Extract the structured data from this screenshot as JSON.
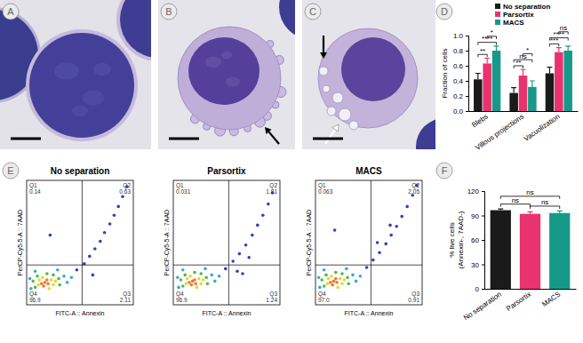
{
  "panel_labels": [
    "A",
    "B",
    "C",
    "D",
    "E",
    "F"
  ],
  "chart_data": [
    {
      "type": "bar",
      "y_label": "Fraction of cells",
      "categories": [
        "Blebs",
        "Villous projections",
        "Vacuolization"
      ],
      "ylim": [
        0,
        1
      ],
      "yticks": [
        {
          "value": 0,
          "label": "0.0"
        },
        {
          "value": 0.2,
          "label": "0.2"
        },
        {
          "value": 0.4,
          "label": "0.4"
        },
        {
          "value": 0.6,
          "label": "0.6"
        },
        {
          "value": 0.8,
          "label": "0.8"
        },
        {
          "value": 1,
          "label": "1.0"
        }
      ],
      "legend": "upper left",
      "series": [
        {
          "name": "No separation",
          "color": "#1a1a1a",
          "values": [
            0.42,
            0.24,
            0.5
          ],
          "errors": [
            0.08,
            0.07,
            0.08
          ]
        },
        {
          "name": "Parsortix",
          "color": "#e8336e",
          "values": [
            0.63,
            0.47,
            0.78
          ],
          "errors": [
            0.07,
            0.08,
            0.06
          ]
        },
        {
          "name": "MACS",
          "color": "#17998a",
          "values": [
            0.8,
            0.32,
            0.8
          ],
          "errors": [
            0.06,
            0.08,
            0.06
          ]
        }
      ],
      "annotations": [
        {
          "text": "**",
          "category": 0,
          "between": [
            0,
            1
          ]
        },
        {
          "text": "****",
          "category": 0,
          "between": [
            0,
            2
          ]
        },
        {
          "text": "*",
          "category": 0,
          "between": [
            1,
            2
          ]
        },
        {
          "text": "**",
          "category": 1,
          "between": [
            0,
            1
          ]
        },
        {
          "text": "ns",
          "category": 1,
          "between": [
            0,
            2
          ]
        },
        {
          "text": "*",
          "category": 1,
          "between": [
            1,
            2
          ]
        },
        {
          "text": "***",
          "category": 2,
          "between": [
            0,
            1
          ]
        },
        {
          "text": "****",
          "category": 2,
          "between": [
            0,
            2
          ]
        },
        {
          "text": "ns",
          "category": 2,
          "between": [
            1,
            2
          ]
        }
      ]
    },
    {
      "type": "scatter",
      "title": "No separation",
      "x_label": "FITC-A :: Annexin",
      "y_label": "PerCP-Cy5-5-A :: 7AAD",
      "xlim": [
        0,
        100
      ],
      "ylim": [
        0,
        100
      ],
      "tick_labels": false,
      "x": [
        14,
        17,
        20,
        16,
        19,
        11,
        12,
        23,
        25,
        15,
        21,
        27,
        8,
        30,
        10,
        25,
        31,
        6,
        19,
        4,
        35,
        38,
        8,
        29,
        42,
        3,
        47,
        54,
        59,
        64,
        69,
        73,
        78,
        82,
        86,
        90,
        94,
        62,
        22
      ],
      "y": [
        17,
        18,
        17,
        15,
        20,
        16,
        20,
        20,
        16,
        22,
        13,
        19,
        14,
        21,
        23,
        24,
        16,
        19,
        25,
        13,
        23,
        18,
        27,
        28,
        22,
        21,
        28,
        33,
        39,
        45,
        51,
        58,
        65,
        72,
        79,
        87,
        95,
        24,
        56
      ],
      "colors": [
        "#f4762a",
        "#f4762a",
        "#f4762a",
        "#f4762a",
        "#f4762a",
        "#e6d72a",
        "#e6d72a",
        "#e6d72a",
        "#e6d72a",
        "#e6d72a",
        "#e6d72a",
        "#e6d72a",
        "#52b848",
        "#52b848",
        "#52b848",
        "#52b848",
        "#52b848",
        "#52b848",
        "#52b848",
        "#35a7d9",
        "#35a7d9",
        "#35a7d9",
        "#35a7d9",
        "#35a7d9",
        "#35a7d9",
        "#35a7d9",
        "#2c43b8",
        "#2c43b8",
        "#2c43b8",
        "#2c43b8",
        "#2c43b8",
        "#2c43b8",
        "#2c43b8",
        "#2c43b8",
        "#2c43b8",
        "#2c43b8",
        "#2c43b8",
        "#2c43b8",
        "#2c43b8"
      ],
      "gates": {
        "x": 52,
        "y": 32
      },
      "quadrants": [
        {
          "name": "Q1",
          "value": 0.14
        },
        {
          "name": "Q2",
          "value": 0.63
        },
        {
          "name": "Q3",
          "value": 2.11
        },
        {
          "name": "Q4",
          "value": 96.9
        }
      ]
    },
    {
      "type": "scatter",
      "title": "Parsortix",
      "x_label": "FITC-A :: Annexin",
      "y_label": "PerCP-Cy5-5-A :: 7AAD",
      "xlim": [
        0,
        100
      ],
      "ylim": [
        0,
        100
      ],
      "tick_labels": false,
      "x": [
        15,
        18,
        21,
        17,
        20,
        12,
        13,
        24,
        26,
        16,
        22,
        28,
        9,
        31,
        11,
        26,
        32,
        7,
        20,
        5,
        36,
        39,
        9,
        30,
        43,
        4,
        49,
        56,
        62,
        68,
        74,
        79,
        84,
        89,
        93,
        65,
        60,
        71
      ],
      "y": [
        18,
        19,
        17,
        16,
        20,
        17,
        21,
        21,
        17,
        23,
        14,
        20,
        15,
        22,
        24,
        25,
        17,
        20,
        26,
        14,
        24,
        19,
        28,
        29,
        23,
        22,
        29,
        35,
        41,
        48,
        56,
        64,
        72,
        81,
        90,
        25,
        27,
        38
      ],
      "colors": [
        "#f4762a",
        "#f4762a",
        "#f4762a",
        "#f4762a",
        "#f4762a",
        "#e6d72a",
        "#e6d72a",
        "#e6d72a",
        "#e6d72a",
        "#e6d72a",
        "#e6d72a",
        "#e6d72a",
        "#52b848",
        "#52b848",
        "#52b848",
        "#52b848",
        "#52b848",
        "#52b848",
        "#52b848",
        "#35a7d9",
        "#35a7d9",
        "#35a7d9",
        "#35a7d9",
        "#35a7d9",
        "#35a7d9",
        "#35a7d9",
        "#2c43b8",
        "#2c43b8",
        "#2c43b8",
        "#2c43b8",
        "#2c43b8",
        "#2c43b8",
        "#2c43b8",
        "#2c43b8",
        "#2c43b8",
        "#2c43b8",
        "#2c43b8",
        "#2c43b8"
      ],
      "gates": {
        "x": 52,
        "y": 32
      },
      "quadrants": [
        {
          "name": "Q1",
          "value": 0.031
        },
        {
          "name": "Q2",
          "value": 1.81
        },
        {
          "name": "Q3",
          "value": 1.24
        },
        {
          "name": "Q4",
          "value": 96.9
        }
      ]
    },
    {
      "type": "scatter",
      "title": "MACS",
      "x_label": "FITC-A :: Annexin",
      "y_label": "PerCP-Cy5-5-A :: 7AAD",
      "xlim": [
        0,
        100
      ],
      "ylim": [
        0,
        100
      ],
      "tick_labels": false,
      "x": [
        14,
        17,
        20,
        16,
        19,
        11,
        12,
        23,
        25,
        15,
        21,
        27,
        8,
        30,
        10,
        25,
        31,
        6,
        19,
        4,
        35,
        38,
        8,
        29,
        42,
        3,
        48,
        54,
        60,
        66,
        71,
        76,
        81,
        86,
        91,
        95,
        58,
        70,
        18
      ],
      "y": [
        18,
        19,
        18,
        16,
        21,
        17,
        21,
        21,
        17,
        23,
        14,
        20,
        15,
        22,
        24,
        25,
        17,
        20,
        26,
        14,
        24,
        19,
        28,
        29,
        23,
        22,
        30,
        36,
        42,
        49,
        56,
        63,
        71,
        79,
        88,
        96,
        50,
        64,
        60
      ],
      "colors": [
        "#f4762a",
        "#f4762a",
        "#f4762a",
        "#f4762a",
        "#f4762a",
        "#e6d72a",
        "#e6d72a",
        "#e6d72a",
        "#e6d72a",
        "#e6d72a",
        "#e6d72a",
        "#e6d72a",
        "#52b848",
        "#52b848",
        "#52b848",
        "#52b848",
        "#52b848",
        "#52b848",
        "#52b848",
        "#35a7d9",
        "#35a7d9",
        "#35a7d9",
        "#35a7d9",
        "#35a7d9",
        "#35a7d9",
        "#35a7d9",
        "#2c43b8",
        "#2c43b8",
        "#2c43b8",
        "#2c43b8",
        "#2c43b8",
        "#2c43b8",
        "#2c43b8",
        "#2c43b8",
        "#2c43b8",
        "#2c43b8",
        "#2c43b8",
        "#2c43b8",
        "#2c43b8"
      ],
      "gates": {
        "x": 52,
        "y": 32
      },
      "quadrants": [
        {
          "name": "Q1",
          "value": 0.063
        },
        {
          "name": "Q2",
          "value": 2.05
        },
        {
          "name": "Q3",
          "value": 0.91
        },
        {
          "name": "Q4",
          "value": 97,
          "label": "97.0"
        }
      ]
    },
    {
      "type": "bar",
      "y_label": [
        "% live cells",
        "(Annexin-, 7AAD-)"
      ],
      "categories": [
        "No separation",
        "Parsortix",
        "MACS"
      ],
      "values": [
        96.5,
        92,
        93
      ],
      "errors": [
        1.5,
        2.5,
        2.5
      ],
      "colors": [
        "#1a1a1a",
        "#e8336e",
        "#17998a"
      ],
      "ylim": [
        0,
        120
      ],
      "yticks": [
        0,
        30,
        60,
        90,
        120
      ],
      "annotations": [
        {
          "text": "ns",
          "between": [
            0,
            1
          ]
        },
        {
          "text": "ns",
          "between": [
            1,
            2
          ]
        },
        {
          "text": "ns",
          "between": [
            0,
            2
          ]
        }
      ]
    }
  ]
}
